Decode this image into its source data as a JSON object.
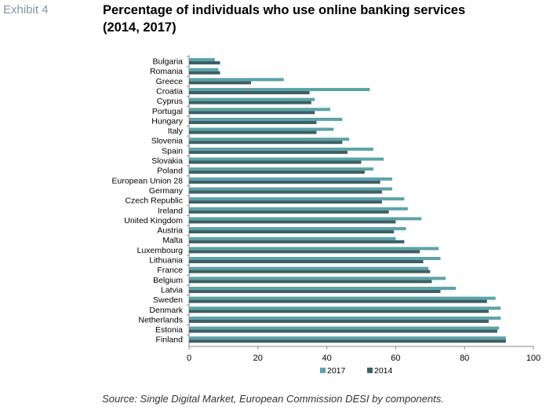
{
  "exhibit_label": "Exhibit 4",
  "title_line1": "Percentage of individuals who use online banking services",
  "title_line2": "(2014, 2017)",
  "source": "Source: Single Digital Market, European Commission DESI by components.",
  "colors": {
    "s2017": "#5ba3a8",
    "s2014": "#3d5f63",
    "axis": "#888888",
    "text": "#000000"
  },
  "chart_data": {
    "type": "bar",
    "orientation": "horizontal",
    "categories": [
      "Bulgaria",
      "Romania",
      "Greece",
      "Croatia",
      "Cyprus",
      "Portugal",
      "Hungary",
      "Italy",
      "Slovenia",
      "Spain",
      "Slovakia",
      "Poland",
      "European Union 28",
      "Germany",
      "Czech Republic",
      "Ireland",
      "United Kingdom",
      "Austria",
      "Malta",
      "Luxembourg",
      "Lithuania",
      "France",
      "Belgium",
      "Latvia",
      "Sweden",
      "Denmark",
      "Netherlands",
      "Estonia",
      "Finland"
    ],
    "series": [
      {
        "name": "2017",
        "values": [
          7.5,
          8.5,
          27.5,
          52.5,
          36.5,
          41,
          44.5,
          42,
          46.5,
          53.5,
          56.5,
          53.5,
          59,
          59,
          62.5,
          63.5,
          67.5,
          63,
          60,
          72.5,
          73,
          69.5,
          74.5,
          77.5,
          89,
          90.5,
          90.5,
          90,
          92
        ]
      },
      {
        "name": "2014",
        "values": [
          9,
          9,
          18,
          35,
          35.5,
          36.5,
          37,
          37,
          44.5,
          46,
          50,
          51,
          55.5,
          56,
          56,
          58,
          60,
          59.5,
          62.5,
          67,
          68,
          70,
          70.5,
          73,
          86.5,
          87,
          87,
          89.5,
          92
        ]
      }
    ],
    "x_ticks": [
      "0",
      "20",
      "40",
      "60",
      "80",
      "100"
    ],
    "xlim": [
      0,
      100
    ],
    "legend_position": "bottom",
    "grid": false
  }
}
